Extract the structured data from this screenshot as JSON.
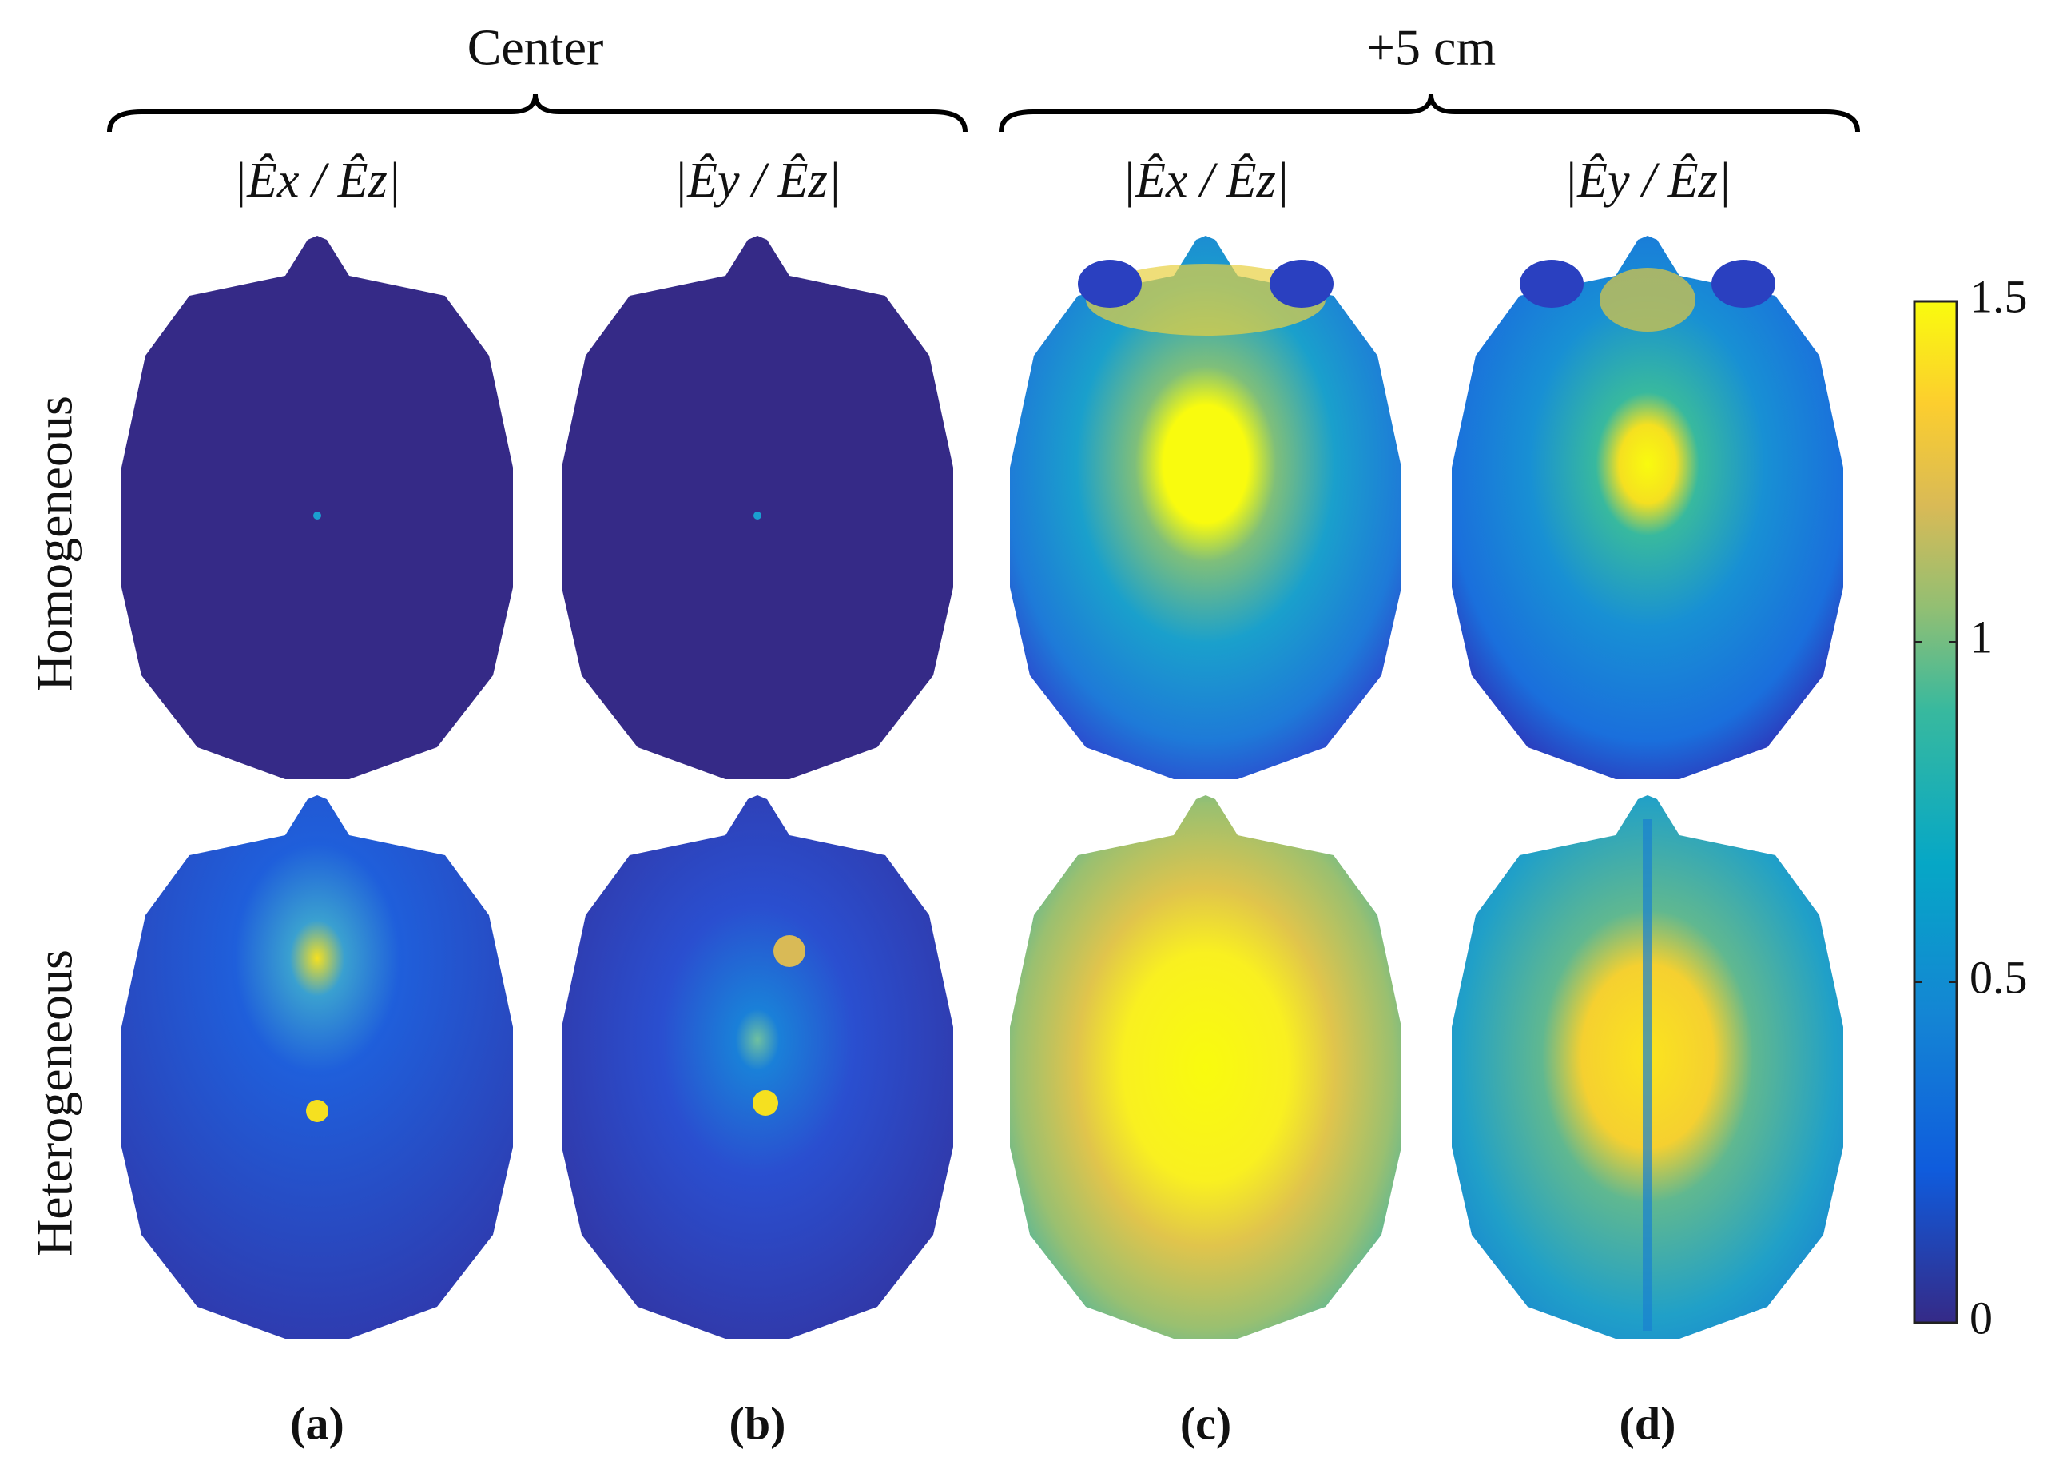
{
  "groups": [
    "Center",
    "+5 cm"
  ],
  "columns": [
    "|Êx / Êz|",
    "|Êy / Êz|",
    "|Êx / Êz|",
    "|Êy / Êz|"
  ],
  "rows": [
    "Homogeneous",
    "Heterogeneous"
  ],
  "panels": [
    "(a)",
    "(b)",
    "(c)",
    "(d)"
  ],
  "colorbar": {
    "range": [
      0,
      1.5
    ],
    "ticks": [
      0,
      0.5,
      1,
      1.5
    ]
  }
}
